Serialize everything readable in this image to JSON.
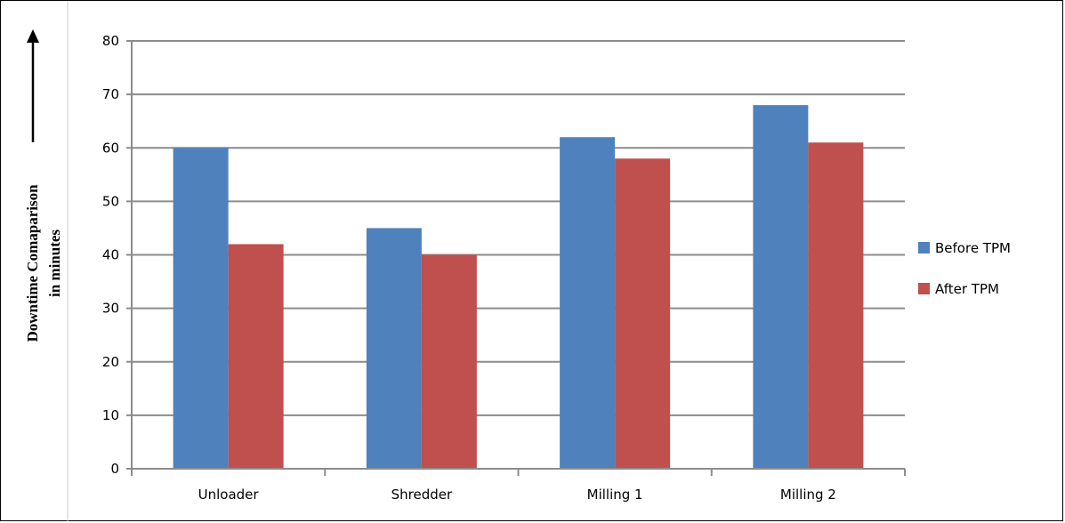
{
  "chart_data": {
    "type": "bar",
    "categories": [
      "Unloader",
      "Shredder",
      "Milling 1",
      "Milling 2"
    ],
    "series": [
      {
        "name": "Before TPM",
        "color": "#4F81BD",
        "values": [
          60,
          45,
          62,
          68
        ]
      },
      {
        "name": "After TPM",
        "color": "#C0504D",
        "values": [
          42,
          40,
          58,
          61
        ]
      }
    ],
    "ylabel_line1": "Downtime Comaparison",
    "ylabel_line2": "in minutes",
    "ylim": [
      0,
      80
    ],
    "yticks": [
      0,
      10,
      20,
      30,
      40,
      50,
      60,
      70,
      80
    ],
    "grid": true,
    "legend_position": "right"
  }
}
